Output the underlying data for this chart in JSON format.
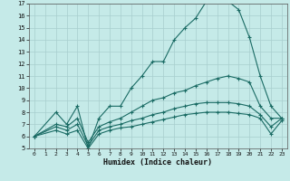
{
  "xlabel": "Humidex (Indice chaleur)",
  "bg_color": "#c5eae8",
  "grid_color": "#a8cece",
  "line_color": "#1a6b64",
  "xlim": [
    -0.5,
    23.5
  ],
  "ylim": [
    5,
    17
  ],
  "xticks": [
    0,
    1,
    2,
    3,
    4,
    5,
    6,
    7,
    8,
    9,
    10,
    11,
    12,
    13,
    14,
    15,
    16,
    17,
    18,
    19,
    20,
    21,
    22,
    23
  ],
  "yticks": [
    5,
    6,
    7,
    8,
    9,
    10,
    11,
    12,
    13,
    14,
    15,
    16,
    17
  ],
  "curves": [
    {
      "x": [
        0,
        2,
        3,
        4,
        5,
        6,
        7,
        8,
        9,
        10,
        11,
        12,
        13,
        14,
        15,
        16,
        17,
        18,
        19,
        20,
        21,
        22,
        23
      ],
      "y": [
        6,
        8,
        7,
        8.5,
        5,
        7.5,
        8.5,
        8.5,
        10,
        11,
        12.2,
        12.2,
        14,
        15,
        15.8,
        17.2,
        17.2,
        17.2,
        16.5,
        14.2,
        11,
        8.5,
        7.5
      ]
    },
    {
      "x": [
        0,
        2,
        3,
        4,
        5,
        6,
        7,
        8,
        9,
        10,
        11,
        12,
        13,
        14,
        15,
        16,
        17,
        18,
        19,
        20,
        21,
        22,
        23
      ],
      "y": [
        6,
        7,
        6.8,
        7.5,
        5.5,
        6.8,
        7.2,
        7.5,
        8.0,
        8.5,
        9.0,
        9.2,
        9.6,
        9.8,
        10.2,
        10.5,
        10.8,
        11.0,
        10.8,
        10.5,
        8.5,
        7.5,
        7.5
      ]
    },
    {
      "x": [
        0,
        2,
        3,
        4,
        5,
        6,
        7,
        8,
        9,
        10,
        11,
        12,
        13,
        14,
        15,
        16,
        17,
        18,
        19,
        20,
        21,
        22,
        23
      ],
      "y": [
        6,
        6.8,
        6.5,
        7.0,
        5.2,
        6.5,
        6.8,
        7.0,
        7.3,
        7.5,
        7.8,
        8.0,
        8.3,
        8.5,
        8.7,
        8.8,
        8.8,
        8.8,
        8.7,
        8.5,
        7.8,
        6.8,
        7.5
      ]
    },
    {
      "x": [
        0,
        2,
        3,
        4,
        5,
        6,
        7,
        8,
        9,
        10,
        11,
        12,
        13,
        14,
        15,
        16,
        17,
        18,
        19,
        20,
        21,
        22,
        23
      ],
      "y": [
        6,
        6.5,
        6.2,
        6.5,
        5.0,
        6.2,
        6.5,
        6.7,
        6.8,
        7.0,
        7.2,
        7.4,
        7.6,
        7.8,
        7.9,
        8.0,
        8.0,
        8.0,
        7.9,
        7.8,
        7.5,
        6.2,
        7.3
      ]
    }
  ]
}
